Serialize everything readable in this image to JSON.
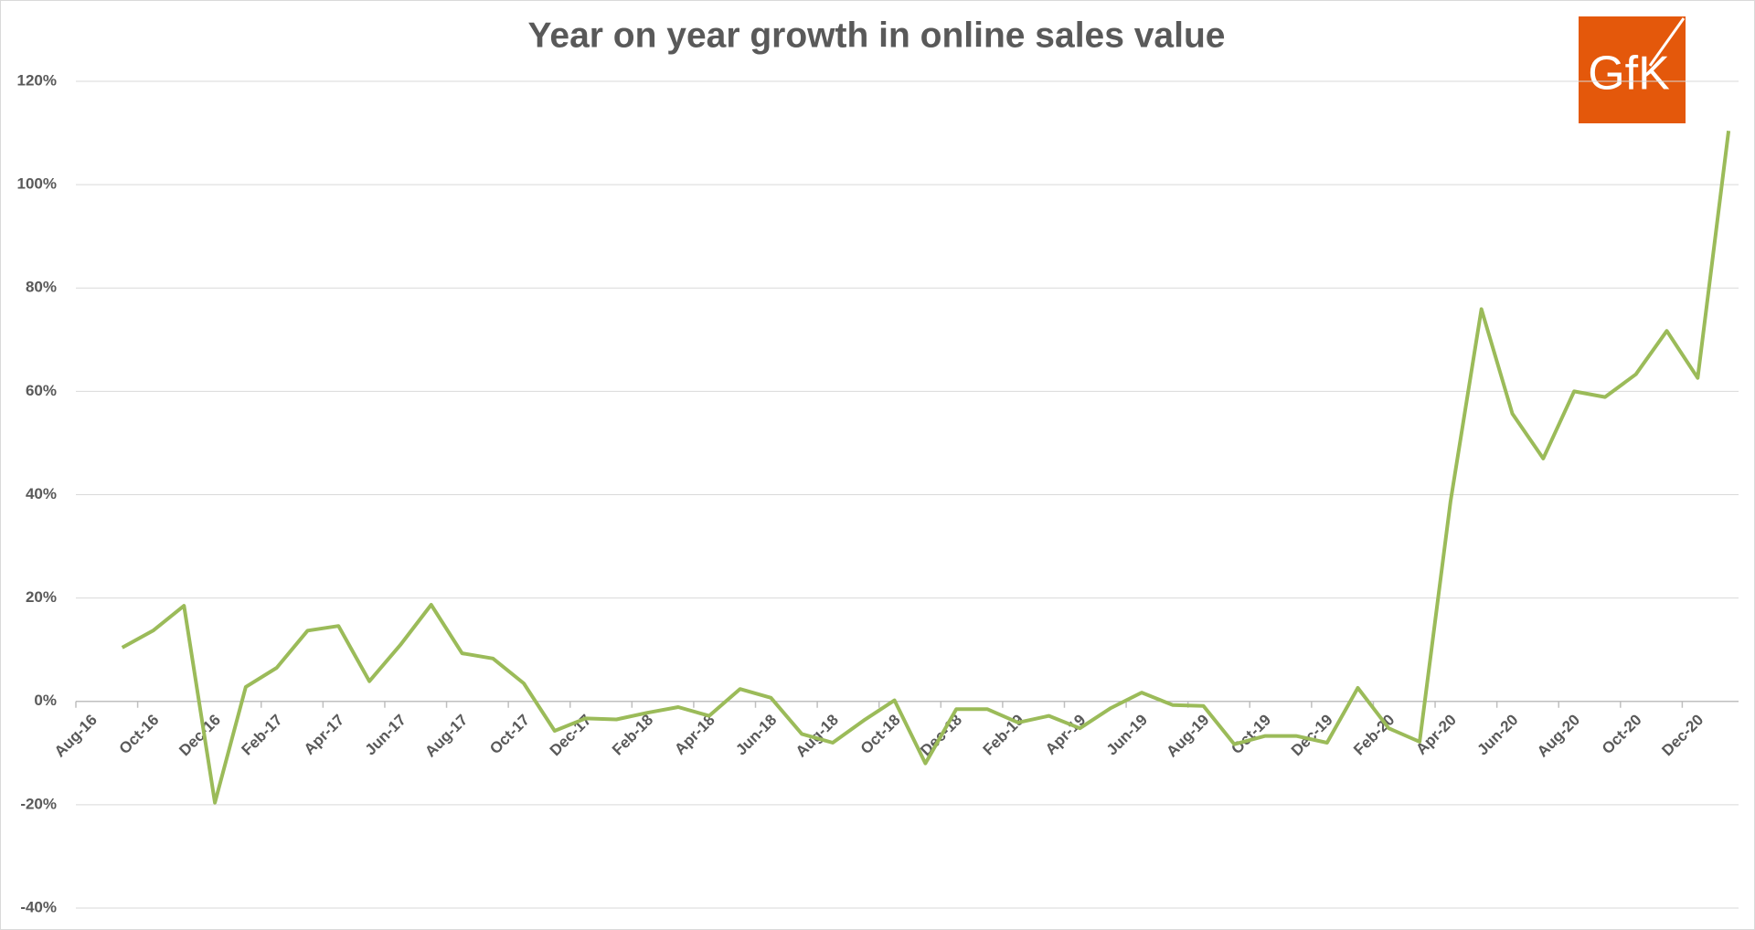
{
  "chart_data": {
    "type": "line",
    "title": "Year on year growth in online sales value",
    "categories": [
      "Aug-16",
      null,
      "Oct-16",
      null,
      "Dec-16",
      null,
      "Feb-17",
      null,
      "Apr-17",
      null,
      "Jun-17",
      null,
      "Aug-17",
      null,
      "Oct-17",
      null,
      "Dec-17",
      null,
      "Feb-18",
      null,
      "Apr-18",
      null,
      "Jun-18",
      null,
      "Aug-18",
      null,
      "Oct-18",
      null,
      "Dec-18",
      null,
      "Feb-19",
      null,
      "Apr-19",
      null,
      "Jun-19",
      null,
      "Aug-19",
      null,
      "Oct-19",
      null,
      "Dec-19",
      null,
      "Feb-20",
      null,
      "Apr-20",
      null,
      "Jun-20",
      null,
      "Aug-20",
      null,
      "Oct-20",
      null,
      "Dec-20",
      null
    ],
    "values": [
      null,
      10.4,
      13.7,
      18.5,
      -19.6,
      2.8,
      6.5,
      13.7,
      14.6,
      3.9,
      10.9,
      18.7,
      9.3,
      8.3,
      3.5,
      -5.7,
      -3.3,
      -3.5,
      -2.2,
      -1.1,
      -2.8,
      2.4,
      0.7,
      -6.3,
      -8.0,
      -3.7,
      0.2,
      -12.0,
      -1.5,
      -1.5,
      -4.1,
      -2.8,
      -5.2,
      -1.3,
      1.7,
      -0.7,
      -0.9,
      -8.3,
      -6.7,
      -6.7,
      -8.0,
      2.6,
      -5.2,
      -7.8,
      38.7,
      75.9,
      55.7,
      47.0,
      60.0,
      58.9,
      63.3,
      71.7,
      62.6,
      110.4
    ],
    "color": "#9bbb59",
    "ylim": [
      -40,
      120
    ],
    "yticks": [
      {
        "value": -40,
        "label": "-40%"
      },
      {
        "value": -20,
        "label": "-20%"
      },
      {
        "value": 0,
        "label": "0%"
      },
      {
        "value": 20,
        "label": "20%"
      },
      {
        "value": 40,
        "label": "40%"
      },
      {
        "value": 60,
        "label": "60%"
      },
      {
        "value": 80,
        "label": "80%"
      },
      {
        "value": 100,
        "label": "100%"
      },
      {
        "value": 120,
        "label": "120%"
      }
    ],
    "grid": true
  },
  "logo": "GfK"
}
